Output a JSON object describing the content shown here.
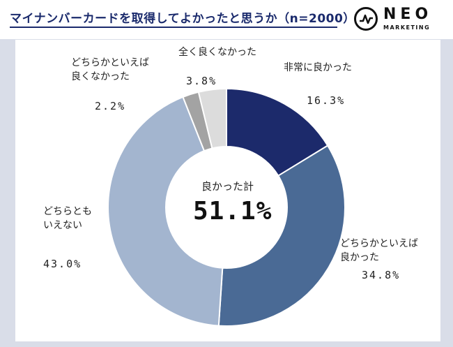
{
  "title": "マイナンバーカードを取得してよかったと思うか（n=2000）",
  "logo": {
    "name": "NEO",
    "sub": "MARKETING"
  },
  "colors": {
    "s1": "#1c2a6b",
    "s2": "#4a6a95",
    "s3": "#a3b5cf",
    "s4": "#a3a3a3",
    "s5": "#dcdcdc"
  },
  "chart_data": {
    "type": "pie",
    "donut": true,
    "title": "マイナンバーカードを取得してよかったと思うか（n=2000）",
    "center_label": "良かった計",
    "center_value": "51.1%",
    "slices": [
      {
        "label": "非常に良かった",
        "value": 16.3,
        "display": "16.3%"
      },
      {
        "label": "どちらかといえば良かった",
        "label_lines": [
          "どちらかといえば",
          "良かった"
        ],
        "value": 34.8,
        "display": "34.8%"
      },
      {
        "label": "どちらともいえない",
        "label_lines": [
          "どちらとも",
          "いえない"
        ],
        "value": 43.0,
        "display": "43.0%"
      },
      {
        "label": "どちらかといえば良くなかった",
        "label_lines": [
          "どちらかといえば",
          "良くなかった"
        ],
        "value": 2.2,
        "display": "2.2%"
      },
      {
        "label": "全く良くなかった",
        "value": 3.8,
        "display": "3.8%"
      }
    ]
  }
}
